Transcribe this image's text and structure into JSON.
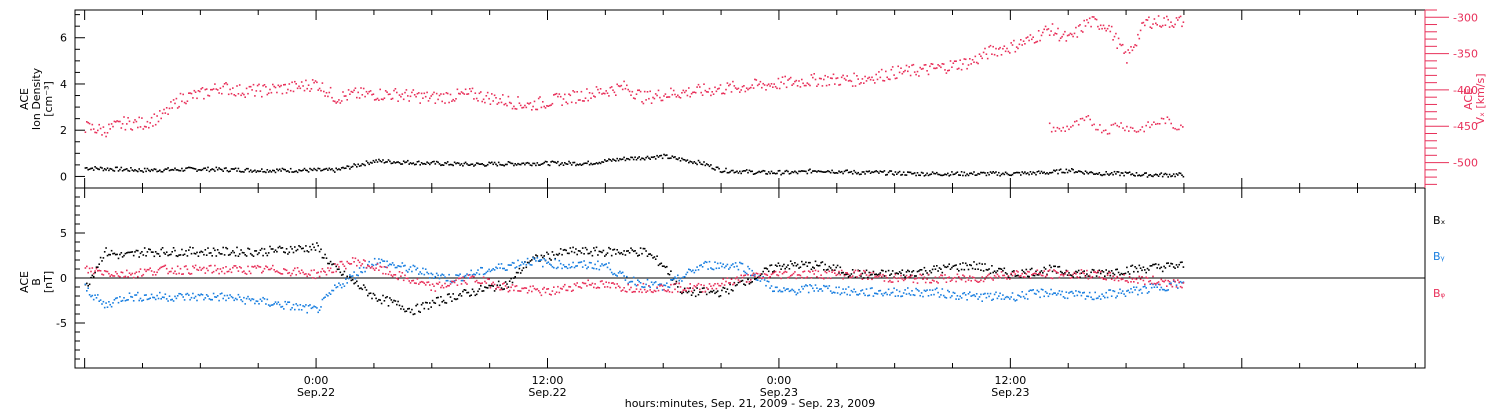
{
  "colors": {
    "density": "#000000",
    "vx": "#e8305a",
    "bx": "#000000",
    "by": "#1a7fe0",
    "bz": "#e8305a",
    "axis": "#000000"
  },
  "footer": {
    "xlabel": "hours:minutes, Sep. 21, 2009 - Sep. 23, 2009"
  },
  "chart_data": [
    {
      "type": "scatter",
      "ylabel_lines": [
        "ACE",
        "Ion Density",
        "[cm⁻³]"
      ],
      "y2label_lines": [
        "ACE",
        "Vₓ [km/s]"
      ],
      "ylim": [
        -0.5,
        7.2
      ],
      "yticks": [
        0,
        2,
        4,
        6
      ],
      "y2lim": [
        -535,
        -290
      ],
      "y2ticks": [
        -300,
        -350,
        -400,
        -450,
        -500
      ],
      "series": [
        {
          "axis": "left",
          "x": [
            -12,
            -9,
            -6,
            -3,
            -1,
            1,
            3,
            6,
            8,
            11,
            14,
            16,
            18,
            20,
            21,
            23,
            25,
            26,
            28,
            29,
            31,
            33,
            35,
            36,
            38,
            39,
            40,
            41,
            42,
            43,
            45
          ],
          "y": [
            0.4,
            0.3,
            0.35,
            0.3,
            0.3,
            0.3,
            0.7,
            0.6,
            0.55,
            0.6,
            0.6,
            0.8,
            0.9,
            0.6,
            0.3,
            0.2,
            0.2,
            0.3,
            0.2,
            0.2,
            0.15,
            0.15,
            0.15,
            0.15,
            0.2,
            0.3,
            0.2,
            0.15,
            0.15,
            0.1,
            0.1
          ]
        },
        {
          "axis": "right",
          "x": [
            -12,
            -11,
            -10,
            -9,
            -8,
            -7,
            -6,
            -5,
            -4,
            -3,
            -1,
            0,
            1,
            2,
            3,
            4,
            6,
            8,
            10,
            11,
            12,
            14,
            16,
            17,
            18,
            20,
            22,
            24,
            26,
            28,
            30,
            32,
            34,
            35,
            36,
            37,
            38,
            39,
            40,
            41,
            42,
            43,
            44,
            45
          ],
          "y": [
            -450,
            -455,
            -445,
            -445,
            -435,
            -410,
            -405,
            -395,
            -400,
            -400,
            -395,
            -390,
            -410,
            -405,
            -405,
            -405,
            -410,
            -405,
            -415,
            -420,
            -415,
            -405,
            -395,
            -410,
            -405,
            -400,
            -395,
            -390,
            -385,
            -385,
            -375,
            -370,
            -360,
            -345,
            -340,
            -330,
            -315,
            -330,
            -305,
            -310,
            -355,
            -305,
            -305,
            -305
          ]
        },
        {
          "axis": "right",
          "x": [
            38,
            38.5,
            39,
            39.5,
            40,
            40.5,
            41,
            41.5,
            42,
            42.5,
            43,
            43.5,
            44,
            44.5,
            45
          ],
          "y": [
            -450,
            -455,
            -450,
            -445,
            -440,
            -450,
            -455,
            -445,
            -450,
            -455,
            -450,
            -445,
            -440,
            -450,
            -445
          ]
        }
      ]
    },
    {
      "type": "scatter",
      "ylabel_lines": [
        "ACE",
        "B",
        "[nT]"
      ],
      "ylim": [
        -10,
        10
      ],
      "yticks": [
        -5,
        0,
        5
      ],
      "series": [
        {
          "name": "Bₓ",
          "x": [
            -12,
            -11,
            -10,
            -9,
            -7,
            -5,
            -3,
            0,
            1,
            3,
            5,
            7,
            9,
            10,
            11,
            13,
            15,
            17,
            18,
            19,
            21,
            23,
            24,
            26,
            28,
            30,
            32,
            34,
            36,
            38,
            40,
            42,
            45
          ],
          "y": [
            -1,
            3,
            2.5,
            3,
            3,
            3,
            3,
            3.5,
            1,
            -2,
            -3.5,
            -2,
            -1,
            -0.5,
            2,
            3,
            3,
            3,
            1.5,
            -1.5,
            -1.5,
            0.5,
            1.5,
            1.5,
            0.5,
            0.5,
            1,
            1.5,
            0.5,
            1,
            0.5,
            1,
            1.5
          ]
        },
        {
          "name": "Bᵧ",
          "x": [
            -12,
            -11,
            -10,
            -9,
            -7,
            -5,
            -3,
            0,
            1,
            3,
            5,
            7,
            9,
            11,
            13,
            15,
            16,
            18,
            20,
            22,
            24,
            26,
            28,
            30,
            32,
            34,
            36,
            38,
            40,
            42,
            45
          ],
          "y": [
            -1,
            -3,
            -2,
            -2,
            -2,
            -2,
            -2.5,
            -3.5,
            -1,
            2,
            1,
            0,
            1,
            2,
            1.5,
            1.5,
            0,
            -1,
            1.5,
            1.5,
            -1.5,
            -1,
            -1.5,
            -1.5,
            -1.5,
            -2,
            -2,
            -1.5,
            -2,
            -1.5,
            -0.5
          ]
        },
        {
          "name": "Bᵩ",
          "x": [
            -12,
            -10,
            -8,
            -6,
            -4,
            -2,
            0,
            2,
            4,
            6,
            8,
            10,
            12,
            14,
            16,
            18,
            20,
            22,
            24,
            26,
            28,
            30,
            32,
            34,
            36,
            38,
            40,
            42,
            45
          ],
          "y": [
            1,
            0.5,
            1,
            1,
            1,
            1,
            0.5,
            2,
            0.5,
            -1,
            0,
            -1,
            -1.5,
            -0.5,
            -1,
            -1,
            -1,
            0,
            0.5,
            0.5,
            0.5,
            0,
            0,
            0,
            0.5,
            0.5,
            0.5,
            0,
            -0.5
          ]
        }
      ]
    }
  ],
  "xaxis": {
    "range_hours": [
      -12.5,
      57.5
    ],
    "major_ticks": [
      {
        "hour": 0,
        "time": "0:00",
        "date": "Sep.22"
      },
      {
        "hour": 12,
        "time": "12:00",
        "date": "Sep.22"
      },
      {
        "hour": 24,
        "time": "0:00",
        "date": "Sep.23"
      },
      {
        "hour": 36,
        "time": "12:00",
        "date": "Sep.23"
      }
    ]
  }
}
